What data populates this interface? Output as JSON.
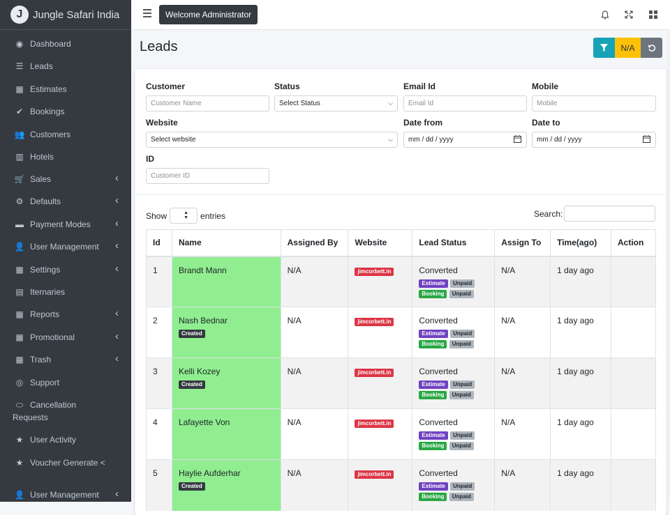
{
  "app": {
    "brand": "Jungle Safari India",
    "logo_letter": "J"
  },
  "topbar": {
    "welcome": "Welcome Administrator"
  },
  "sidebar": {
    "items": [
      {
        "label": "Dashboard",
        "icon": "palette-icon",
        "glyph": "◉",
        "chevron": false
      },
      {
        "label": "Leads",
        "icon": "list-icon",
        "glyph": "☰",
        "chevron": false
      },
      {
        "label": "Estimates",
        "icon": "calculator-icon",
        "glyph": "▦",
        "chevron": false
      },
      {
        "label": "Bookings",
        "icon": "check-circle-icon",
        "glyph": "✔",
        "chevron": false
      },
      {
        "label": "Customers",
        "icon": "users-icon",
        "glyph": "👥",
        "chevron": false
      },
      {
        "label": "Hotels",
        "icon": "building-icon",
        "glyph": "▥",
        "chevron": false
      },
      {
        "label": "Sales",
        "icon": "cart-icon",
        "glyph": "🛒",
        "chevron": true
      },
      {
        "label": "Defaults",
        "icon": "cogs-icon",
        "glyph": "⚙",
        "chevron": true
      },
      {
        "label": "Payment Modes",
        "icon": "credit-card-icon",
        "glyph": "▬",
        "chevron": true
      },
      {
        "label": "User Management",
        "icon": "user-icon",
        "glyph": "👤",
        "chevron": true
      },
      {
        "label": "Settings",
        "icon": "grid-icon",
        "glyph": "▦",
        "chevron": true
      },
      {
        "label": "Iternaries",
        "icon": "document-icon",
        "glyph": "▤",
        "chevron": false
      },
      {
        "label": "Reports",
        "icon": "grid-icon",
        "glyph": "▦",
        "chevron": true
      },
      {
        "label": "Promotional",
        "icon": "calculator-icon",
        "glyph": "▦",
        "chevron": true
      },
      {
        "label": "Trash",
        "icon": "grid-icon",
        "glyph": "▦",
        "chevron": true
      },
      {
        "label": "Support",
        "icon": "lifering-icon",
        "glyph": "◎",
        "chevron": false
      },
      {
        "label": "Cancellation",
        "label2": "Requests",
        "icon": "toggle-icon",
        "glyph": "⬭",
        "chevron": false
      },
      {
        "label": "User Activity",
        "icon": "star-icon",
        "glyph": "★",
        "chevron": false
      },
      {
        "label": "Voucher Generate <",
        "icon": "star-icon",
        "glyph": "★",
        "chevron": false
      },
      {
        "label": "User Management",
        "icon": "user-icon",
        "glyph": "👤",
        "chevron": true
      }
    ]
  },
  "page": {
    "title": "Leads",
    "na_button": "N/A"
  },
  "filters": {
    "customer": {
      "label": "Customer",
      "placeholder": "Customer Name"
    },
    "status": {
      "label": "Status",
      "value": "Select Status"
    },
    "email": {
      "label": "Email Id",
      "placeholder": "Email Id"
    },
    "mobile": {
      "label": "Mobile",
      "placeholder": "Mobile"
    },
    "website": {
      "label": "Website",
      "value": "Select website"
    },
    "date_from": {
      "label": "Date from",
      "placeholder": "mm / dd / yyyy"
    },
    "date_to": {
      "label": "Date to",
      "placeholder": "mm / dd / yyyy"
    },
    "id": {
      "label": "ID",
      "placeholder": "Customer ID"
    }
  },
  "table_controls": {
    "show": "Show",
    "entries": "entries",
    "search": "Search:"
  },
  "table": {
    "headers": [
      "Id",
      "Name",
      "Assigned By",
      "Website",
      "Lead Status",
      "Assign To",
      "Time(ago)",
      "Action"
    ],
    "rows": [
      {
        "id": "1",
        "name": "Brandt Mann",
        "created": false,
        "assigned_by": "N/A",
        "website": "jimcorbett.in",
        "status": "Converted",
        "estimate": "Estimate",
        "booking": "Booking",
        "unpaid": "Unpaid",
        "assign_to": "N/A",
        "time": "1 day ago"
      },
      {
        "id": "2",
        "name": "Nash Bednar",
        "created": true,
        "created_label": "Created",
        "assigned_by": "N/A",
        "website": "jimcorbett.in",
        "status": "Converted",
        "estimate": "Estimate",
        "booking": "Booking",
        "unpaid": "Unpaid",
        "assign_to": "N/A",
        "time": "1 day ago"
      },
      {
        "id": "3",
        "name": "Kelli Kozey",
        "created": true,
        "created_label": "Created",
        "assigned_by": "N/A",
        "website": "jimcorbett.in",
        "status": "Converted",
        "estimate": "Estimate",
        "booking": "Booking",
        "unpaid": "Unpaid",
        "assign_to": "N/A",
        "time": "1 day ago"
      },
      {
        "id": "4",
        "name": "Lafayette Von",
        "created": false,
        "assigned_by": "N/A",
        "website": "jimcorbett.in",
        "status": "Converted",
        "estimate": "Estimate",
        "booking": "Booking",
        "unpaid": "Unpaid",
        "assign_to": "N/A",
        "time": "1 day ago"
      },
      {
        "id": "5",
        "name": "Haylie Aufderhar",
        "created": true,
        "created_label": "Created",
        "assigned_by": "N/A",
        "website": "jimcorbett.in",
        "status": "Converted",
        "estimate": "Estimate",
        "booking": "Booking",
        "unpaid": "Unpaid",
        "assign_to": "N/A",
        "time": "1 day ago"
      }
    ]
  },
  "colors": {
    "sidebar": "#343a40",
    "name_cell": "#90ee90",
    "filter_btn": "#17a2b8",
    "na_btn": "#ffc107",
    "reset_btn": "#6c757d",
    "website_badge": "#dc3545",
    "estimate_badge": "#6f42c1",
    "booking_badge": "#28a745"
  }
}
